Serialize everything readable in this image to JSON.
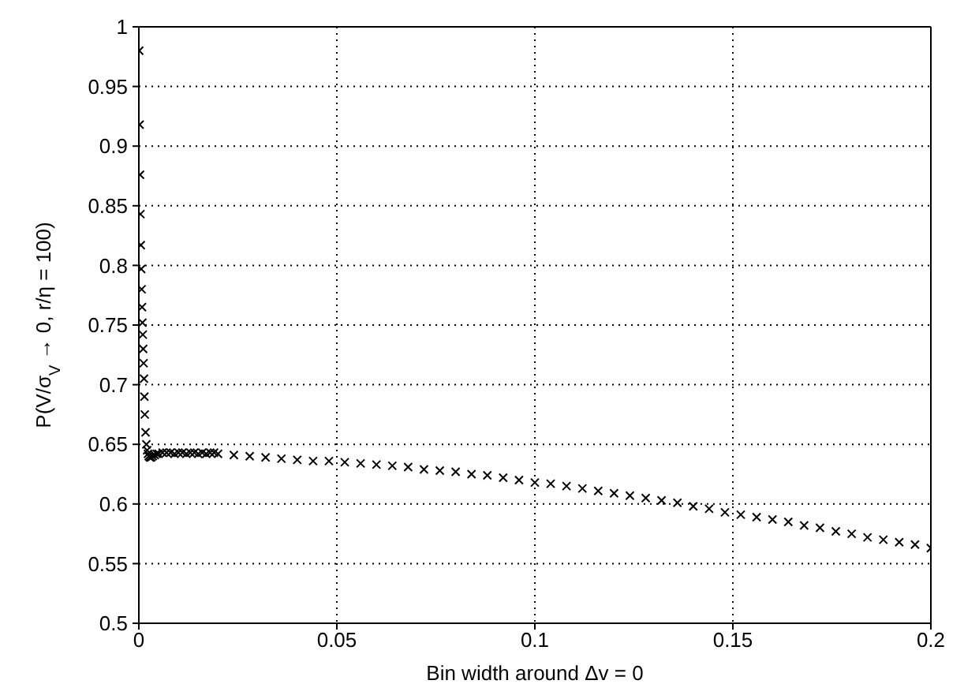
{
  "chart_data": {
    "type": "scatter",
    "xlabel": "Bin width around Δv = 0",
    "ylabel": "P(V/σ$_{V}$ → 0, r/η = 100)",
    "x": [
      0.0001,
      0.0002,
      0.0003,
      0.0004,
      0.0005,
      0.0006,
      0.0007,
      0.0008,
      0.0009,
      0.001,
      0.0011,
      0.0012,
      0.0013,
      0.0014,
      0.0015,
      0.0017,
      0.0019,
      0.0021,
      0.0023,
      0.0025,
      0.0028,
      0.0031,
      0.0035,
      0.004,
      0.0045,
      0.005,
      0.006,
      0.007,
      0.008,
      0.009,
      0.01,
      0.011,
      0.012,
      0.013,
      0.014,
      0.015,
      0.016,
      0.017,
      0.018,
      0.019,
      0.02,
      0.024,
      0.028,
      0.032,
      0.036,
      0.04,
      0.044,
      0.048,
      0.052,
      0.056,
      0.06,
      0.064,
      0.068,
      0.072,
      0.076,
      0.08,
      0.084,
      0.088,
      0.092,
      0.096,
      0.1,
      0.104,
      0.108,
      0.112,
      0.116,
      0.12,
      0.124,
      0.128,
      0.132,
      0.136,
      0.14,
      0.144,
      0.148,
      0.152,
      0.156,
      0.16,
      0.164,
      0.168,
      0.172,
      0.176,
      0.18,
      0.184,
      0.188,
      0.192,
      0.196,
      0.2
    ],
    "values": [
      0.98,
      0.918,
      0.876,
      0.843,
      0.817,
      0.797,
      0.78,
      0.765,
      0.752,
      0.742,
      0.73,
      0.718,
      0.705,
      0.69,
      0.675,
      0.66,
      0.65,
      0.645,
      0.642,
      0.64,
      0.639,
      0.639,
      0.64,
      0.641,
      0.642,
      0.642,
      0.643,
      0.643,
      0.643,
      0.642,
      0.643,
      0.643,
      0.642,
      0.643,
      0.643,
      0.642,
      0.643,
      0.642,
      0.643,
      0.643,
      0.642,
      0.641,
      0.64,
      0.639,
      0.638,
      0.637,
      0.636,
      0.636,
      0.635,
      0.634,
      0.633,
      0.632,
      0.631,
      0.629,
      0.628,
      0.627,
      0.625,
      0.624,
      0.622,
      0.62,
      0.618,
      0.617,
      0.615,
      0.613,
      0.611,
      0.609,
      0.607,
      0.605,
      0.603,
      0.601,
      0.598,
      0.596,
      0.593,
      0.591,
      0.589,
      0.587,
      0.585,
      0.582,
      0.58,
      0.577,
      0.575,
      0.572,
      0.57,
      0.568,
      0.566,
      0.563
    ],
    "color": "#000000",
    "marker": "cross",
    "grid": true,
    "xlim": [
      0,
      0.2
    ],
    "xticks": [
      0,
      0.05,
      0.1,
      0.15,
      0.2
    ],
    "ylim": [
      0.5,
      1
    ],
    "yticks": [
      0.5,
      0.55,
      0.6,
      0.65,
      0.7,
      0.75,
      0.8,
      0.85,
      0.9,
      0.95,
      1
    ]
  }
}
